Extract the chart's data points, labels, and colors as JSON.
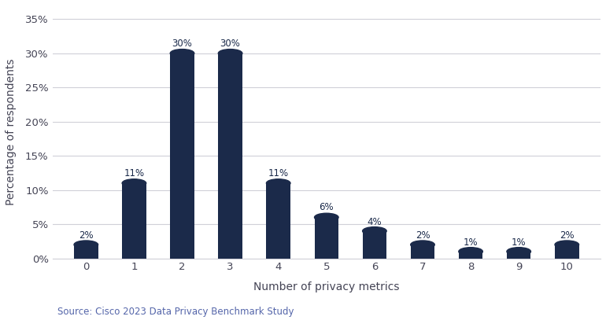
{
  "categories": [
    0,
    1,
    2,
    3,
    4,
    5,
    6,
    7,
    8,
    9,
    10
  ],
  "values": [
    2,
    11,
    30,
    30,
    11,
    6,
    4,
    2,
    1,
    1,
    2
  ],
  "bar_color": "#1b2a4a",
  "xlabel": "Number of privacy metrics",
  "ylabel": "Percentage of respondents",
  "yticks": [
    0,
    5,
    10,
    15,
    20,
    25,
    30,
    35
  ],
  "ytick_labels": [
    "0%",
    "5%",
    "10%",
    "15%",
    "20%",
    "25%",
    "30%",
    "35%"
  ],
  "ylim": [
    0,
    37
  ],
  "source_text": "Source: Cisco 2023 Data Privacy Benchmark Study",
  "background_color": "#ffffff",
  "label_fontsize": 8.5,
  "axis_label_fontsize": 10,
  "tick_fontsize": 9.5,
  "source_fontsize": 8.5,
  "bar_width": 0.5,
  "label_color": "#1b2a4a",
  "tick_color": "#444455",
  "grid_color": "#d0d0d8",
  "source_color": "#5566aa"
}
